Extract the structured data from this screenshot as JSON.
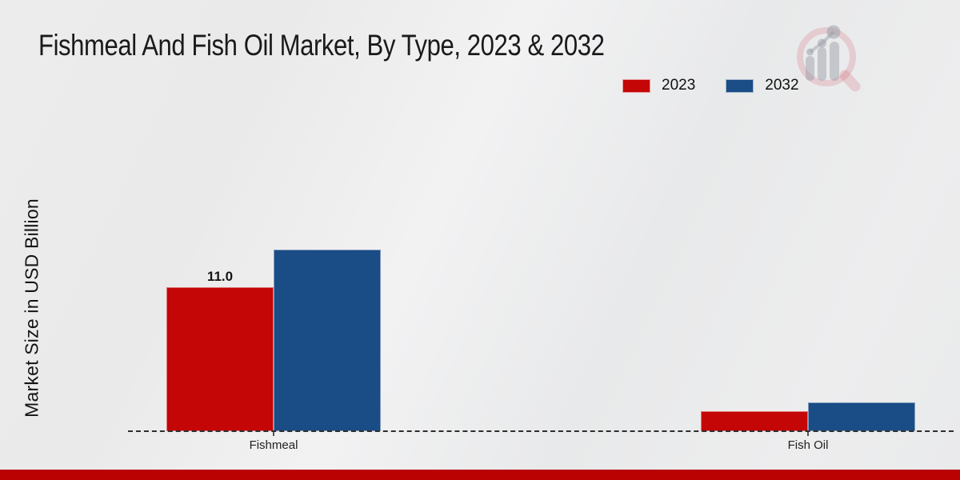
{
  "page": {
    "title": "Fishmeal And Fish Oil Market, By Type, 2023 & 2032"
  },
  "axes": {
    "ylabel": "Market Size in USD Billion"
  },
  "legend": {
    "items": [
      {
        "label": "2023",
        "color": "#c40606"
      },
      {
        "label": "2032",
        "color": "#1a4c86"
      }
    ]
  },
  "chart_data": {
    "type": "bar",
    "title": "Fishmeal And Fish Oil Market, By Type, 2023 & 2032",
    "categories": [
      "Fishmeal",
      "Fish Oil"
    ],
    "series": [
      {
        "name": "2023",
        "color": "#c40606",
        "values": [
          11.0,
          1.5
        ]
      },
      {
        "name": "2032",
        "color": "#1a4c86",
        "values": [
          13.9,
          2.2
        ]
      }
    ],
    "value_labels": [
      {
        "series_index": 0,
        "category_index": 0,
        "text": "11.0"
      }
    ],
    "xlabel": "",
    "ylabel": "Market Size in USD Billion",
    "ylim": [
      0,
      15.2
    ],
    "grid": false,
    "legend_position": "upper right",
    "baseline_style": "dashed",
    "y_axis_ticks_visible": false
  },
  "branding": {
    "logo": "magnifier-growth-chart-watermark",
    "footer_bar_color": "#bb0202"
  }
}
